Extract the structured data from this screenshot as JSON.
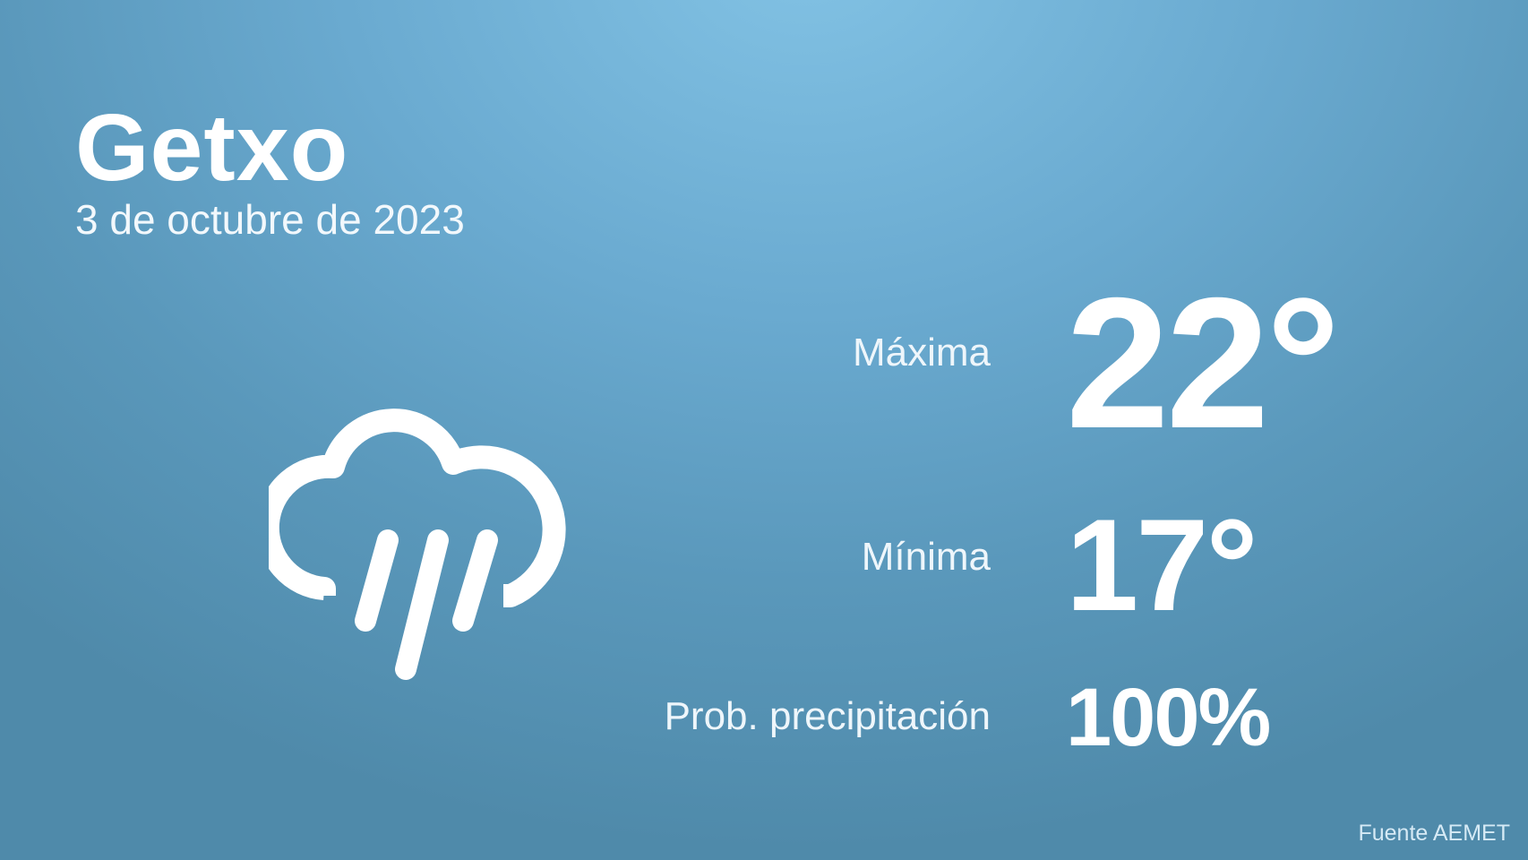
{
  "location": {
    "city": "Getxo",
    "date": "3 de octubre de 2023"
  },
  "forecast": {
    "max_label": "Máxima",
    "max_value": "22°",
    "min_label": "Mínima",
    "min_value": "17°",
    "precip_label": "Prob. precipitación",
    "precip_value": "100%"
  },
  "weather_icon": "cloud-rain-icon",
  "source": "Fuente AEMET",
  "colors": {
    "background_top": "#82c2e4",
    "background_bottom": "#4f8aaa",
    "text": "#ffffff"
  }
}
